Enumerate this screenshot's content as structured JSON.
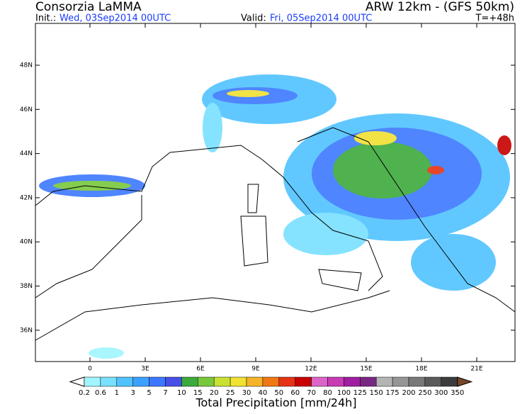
{
  "header": {
    "title": "Consorzia LaMMA",
    "model": "ARW 12km - (GFS 50km)",
    "init_label": "Init.:",
    "init": "Wed, 03Sep2014 00UTC",
    "valid_label": "Valid:",
    "valid": "Fri, 05Sep2014 00UTC",
    "step": "T=+48h"
  },
  "map": {
    "lat_labels": [
      "48N",
      "46N",
      "44N",
      "42N",
      "40N",
      "38N",
      "36N"
    ],
    "lon_labels": [
      "0",
      "3E",
      "6E",
      "9E",
      "12E",
      "15E",
      "18E",
      "21E"
    ]
  },
  "colorbar": {
    "title": "Total Precipitation [mm/24h]",
    "levels": [
      "0.2",
      "0.6",
      "1",
      "3",
      "5",
      "7",
      "10",
      "15",
      "20",
      "25",
      "30",
      "40",
      "50",
      "60",
      "70",
      "80",
      "100",
      "125",
      "150",
      "175",
      "200",
      "250",
      "300",
      "350"
    ],
    "below_color": "#ffffff",
    "colors": [
      "#a0f5ff",
      "#78e1ff",
      "#50c3ff",
      "#3ca0ff",
      "#3c78ff",
      "#4650e6",
      "#3caa3c",
      "#78c83c",
      "#c8e132",
      "#f0e132",
      "#f5b428",
      "#f07814",
      "#e63214",
      "#c80000",
      "#dc64c8",
      "#c83cb4",
      "#a01ea0",
      "#782882",
      "#b4b4b4",
      "#969696",
      "#787878",
      "#5a5a5a",
      "#3c3c3c"
    ],
    "above_color": "#784628"
  }
}
